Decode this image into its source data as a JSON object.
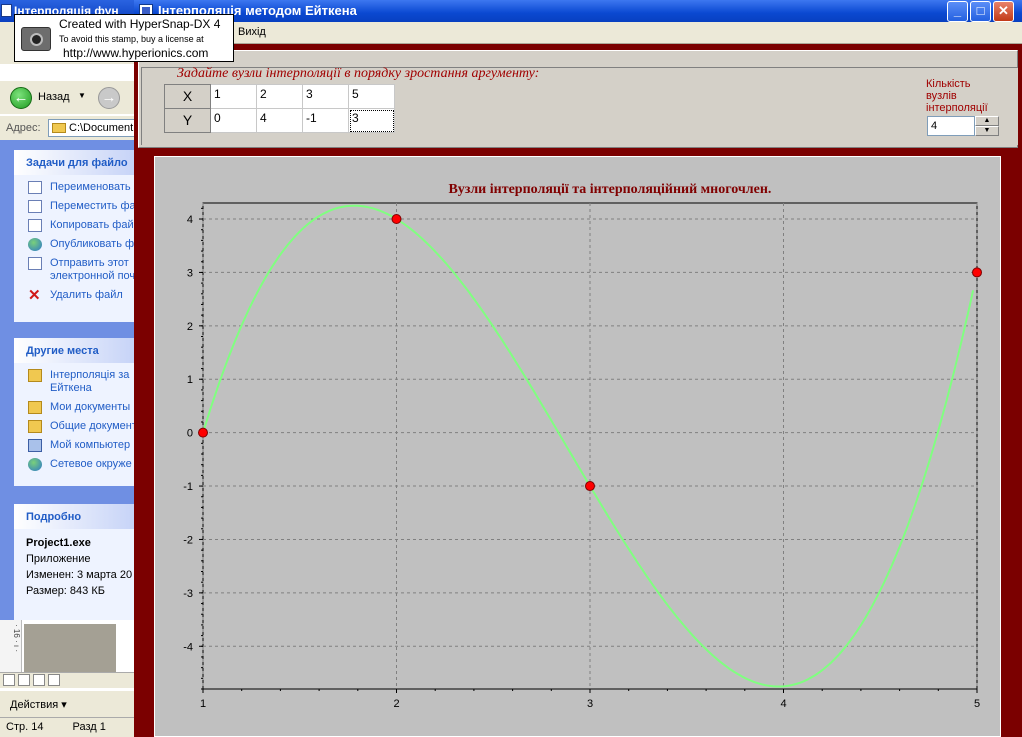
{
  "background_window": {
    "title": "Інтерполяція фун",
    "back_label": "Назад",
    "address_label": "Адрес:",
    "address_value": "C:\\Document",
    "tasks_header": "Задачи для файло",
    "tasks": [
      {
        "label": "Переименовать",
        "icon": "rename-icon"
      },
      {
        "label": "Переместить фа",
        "icon": "move-icon"
      },
      {
        "label": "Копировать фай",
        "icon": "copy-icon"
      },
      {
        "label": "Опубликовать ф",
        "icon": "publish-icon"
      },
      {
        "label": "Отправить этот",
        "label2": "электронной поч",
        "icon": "mail-icon"
      },
      {
        "label": "Удалить файл",
        "icon": "delete-icon"
      }
    ],
    "places_header": "Другие места",
    "places": [
      {
        "label": "Інтерполяція за",
        "label2": "Ейткена",
        "icon": "folder-icon"
      },
      {
        "label": "Мои документы",
        "icon": "folder-icon"
      },
      {
        "label": "Общие документ",
        "icon": "folder-icon"
      },
      {
        "label": "Мой компьютер",
        "icon": "computer-icon"
      },
      {
        "label": "Сетевое окруже",
        "icon": "network-icon"
      }
    ],
    "details_header": "Подробно",
    "details": {
      "name": "Project1.exe",
      "type": "Приложение",
      "modified": "Изменен: 3 марта 20",
      "size": "Размер: 843 КБ"
    },
    "actions_label": "Действия ▾",
    "status": {
      "page": "Стр.  14",
      "section": "Разд  1"
    }
  },
  "stamp": {
    "line1": "Created with HyperSnap-DX 4",
    "line2": "To avoid this stamp, buy a license at",
    "line3": "http://www.hyperionics.com"
  },
  "app": {
    "title": "Інтерполяція методом Ейткена",
    "menu_exit": "Вихід",
    "prompt": "Задайте вузли інтерполяції в порядку зростання аргументу:",
    "grid": {
      "x_label": "X",
      "y_label": "Y",
      "x_values": [
        "1",
        "2",
        "3",
        "5"
      ],
      "y_values": [
        "0",
        "4",
        "-1",
        "3"
      ]
    },
    "count_label": "Кількість вузлів інтерполяції",
    "count_value": "4"
  },
  "chart_data": {
    "type": "line",
    "title": "Вузли інтерполяції  та інтерполяційний многочлен.",
    "xlim": [
      1,
      5
    ],
    "ylim": [
      -4.8,
      4.3
    ],
    "x_ticks": [
      1,
      2,
      3,
      4,
      5
    ],
    "y_ticks": [
      4,
      3,
      2,
      1,
      0,
      -1,
      -2,
      -3,
      -4
    ],
    "grid": true,
    "nodes": [
      {
        "x": 1,
        "y": 0
      },
      {
        "x": 2,
        "y": 4
      },
      {
        "x": 3,
        "y": -1
      },
      {
        "x": 5,
        "y": 3
      }
    ],
    "curve_color": "#80ff80",
    "node_color": "#ff0000",
    "plot_background": "#c0c0c0"
  }
}
